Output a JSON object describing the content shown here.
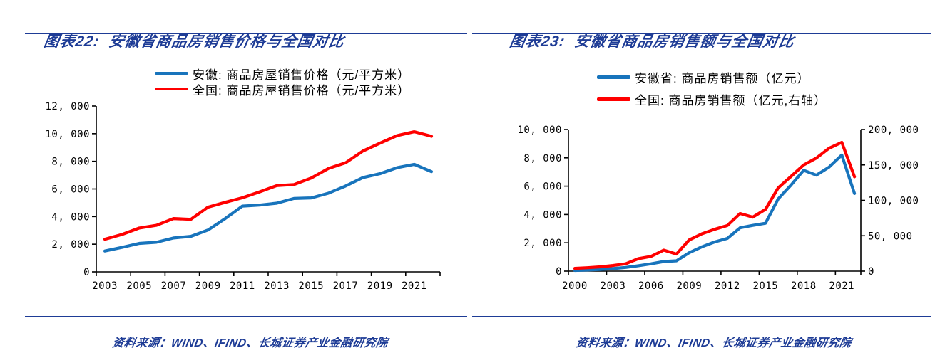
{
  "colors": {
    "accent_blue": "#1E3C96",
    "line_blue": "#1874BC",
    "line_red": "#FF0000",
    "axis_black": "#000000"
  },
  "chart_data": [
    {
      "type": "line",
      "title": "图表22:  安徽省商品房销售价格与全国对比",
      "source": "资料来源：WIND、IFIND、长城证券产业金融研究院",
      "legend": [
        {
          "label": "安徽: 商品房屋销售价格（元/平方米）",
          "color": "#1874BC"
        },
        {
          "label": "全国: 商品房屋销售价格（元/平方米）",
          "color": "#FF0000"
        }
      ],
      "x": [
        2003,
        2004,
        2005,
        2006,
        2007,
        2008,
        2009,
        2010,
        2011,
        2012,
        2013,
        2014,
        2015,
        2016,
        2017,
        2018,
        2019,
        2020,
        2021,
        2022
      ],
      "x_labels": [
        "2003",
        "2005",
        "2007",
        "2009",
        "2011",
        "2013",
        "2015",
        "2017",
        "2019",
        "2021"
      ],
      "x_label_every": 2,
      "series": [
        {
          "name": "安徽: 商品房屋销售价格（元/平方米）",
          "axis": "left",
          "color": "#1874BC",
          "values": [
            1510,
            1770,
            2060,
            2140,
            2450,
            2570,
            3030,
            3860,
            4760,
            4830,
            4970,
            5310,
            5350,
            5690,
            6210,
            6820,
            7100,
            7540,
            7780,
            7250
          ]
        },
        {
          "name": "全国: 商品房屋销售价格（元/平方米）",
          "axis": "left",
          "color": "#FF0000",
          "values": [
            2360,
            2710,
            3170,
            3370,
            3860,
            3800,
            4680,
            5030,
            5360,
            5790,
            6240,
            6320,
            6790,
            7480,
            7890,
            8740,
            9310,
            9860,
            10140,
            9810
          ]
        }
      ],
      "left_axis": {
        "min": 0,
        "max": 12000,
        "step": 2000,
        "labels": [
          "0",
          "2, 000",
          "4, 000",
          "6, 000",
          "8, 000",
          "10, 000",
          "12, 000"
        ]
      },
      "right_axis": null,
      "grid": false,
      "legend_position": "top"
    },
    {
      "type": "line",
      "title": "图表23:  安徽省商品房销售额与全国对比",
      "source": "资料来源：WIND、IFIND、长城证券产业金融研究院",
      "legend": [
        {
          "label": "安徽省: 商品房销售额（亿元）",
          "color": "#1874BC"
        },
        {
          "label": "全国: 商品房销售额（亿元,右轴）",
          "color": "#FF0000"
        }
      ],
      "x": [
        2000,
        2001,
        2002,
        2003,
        2004,
        2005,
        2006,
        2007,
        2008,
        2009,
        2010,
        2011,
        2012,
        2013,
        2014,
        2015,
        2016,
        2017,
        2018,
        2019,
        2020,
        2021,
        2022
      ],
      "x_labels": [
        "2000",
        "2003",
        "2006",
        "2009",
        "2012",
        "2015",
        "2018",
        "2021"
      ],
      "x_label_every": 3,
      "series": [
        {
          "name": "安徽省: 商品房销售额（亿元）",
          "axis": "left",
          "color": "#1874BC",
          "values": [
            50,
            80,
            120,
            180,
            260,
            380,
            520,
            680,
            730,
            1300,
            1720,
            2060,
            2310,
            3060,
            3230,
            3380,
            5100,
            6070,
            7120,
            6780,
            7340,
            8200,
            5480
          ]
        },
        {
          "name": "全国: 商品房销售额（亿元,右轴）",
          "axis": "right",
          "color": "#FF0000",
          "values": [
            3935,
            4863,
            6032,
            7956,
            10376,
            17576,
            20826,
            29604,
            24071,
            43995,
            52721,
            59119,
            64456,
            81428,
            76292,
            87281,
            117627,
            133701,
            149973,
            159725,
            173613,
            181930,
            133308
          ]
        }
      ],
      "left_axis": {
        "min": 0,
        "max": 10000,
        "step": 2000,
        "labels": [
          "0",
          "2, 000",
          "4, 000",
          "6, 000",
          "8, 000",
          "10, 000"
        ]
      },
      "right_axis": {
        "min": 0,
        "max": 200000,
        "step": 50000,
        "labels": [
          "0",
          "50, 000",
          "100, 000",
          "150, 000",
          "200, 000"
        ]
      },
      "grid": false,
      "legend_position": "top"
    }
  ]
}
